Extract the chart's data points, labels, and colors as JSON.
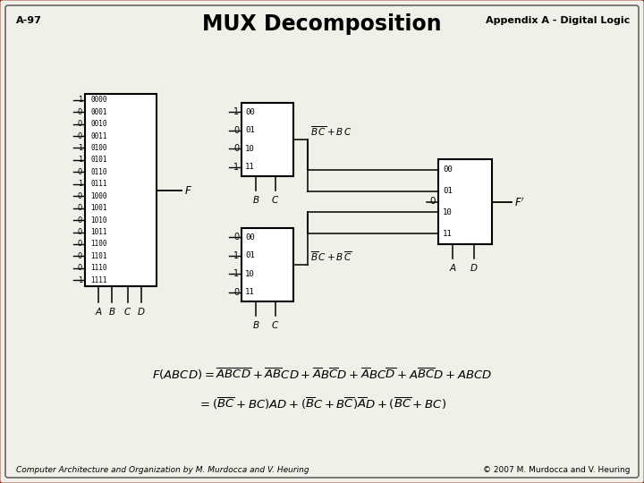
{
  "title": "MUX Decomposition",
  "top_left": "A-97",
  "top_right": "Appendix A - Digital Logic",
  "bottom_left": "Computer Architecture and Organization by M. Murdocca and V. Heuring",
  "bottom_right": "© 2007 M. Murdocca and V. Heuring",
  "bg_color": "#f0efe8",
  "border_color_outer": "#9b3020",
  "border_color_inner": "#666666",
  "mux16_inputs": [
    "1",
    "0",
    "0",
    "0",
    "1",
    "1",
    "0",
    "1",
    "0",
    "0",
    "0",
    "0",
    "0",
    "0",
    "0",
    "1"
  ],
  "mux16_codes": [
    "0000",
    "0001",
    "0010",
    "0011",
    "0100",
    "0101",
    "0110",
    "0111",
    "1000",
    "1001",
    "1010",
    "1011",
    "1100",
    "1101",
    "1110",
    "1111"
  ],
  "mux4_top_inputs": [
    "1",
    "0",
    "0",
    "1"
  ],
  "mux4_top_codes": [
    "00",
    "01",
    "10",
    "11"
  ],
  "mux4_bot_inputs": [
    "0",
    "1",
    "1",
    "0"
  ],
  "mux4_bot_codes": [
    "00",
    "01",
    "10",
    "11"
  ],
  "mux4_right_codes": [
    "00",
    "01",
    "10",
    "11"
  ]
}
